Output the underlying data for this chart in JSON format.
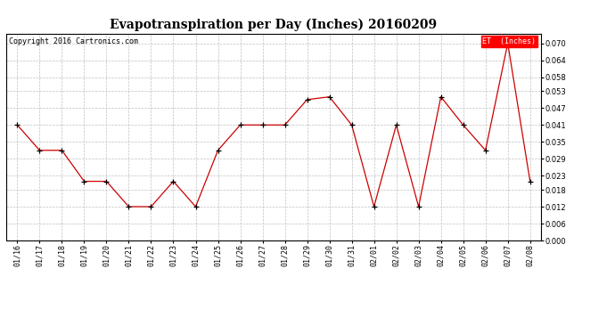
{
  "title": "Evapotranspiration per Day (Inches) 20160209",
  "copyright": "Copyright 2016 Cartronics.com",
  "legend_label": "ET  (Inches)",
  "x_labels": [
    "01/16",
    "01/17",
    "01/18",
    "01/19",
    "01/20",
    "01/21",
    "01/22",
    "01/23",
    "01/24",
    "01/25",
    "01/26",
    "01/27",
    "01/28",
    "01/29",
    "01/30",
    "01/31",
    "02/01",
    "02/02",
    "02/03",
    "02/04",
    "02/05",
    "02/06",
    "02/07",
    "02/08"
  ],
  "y_values": [
    0.041,
    0.032,
    0.032,
    0.021,
    0.021,
    0.012,
    0.012,
    0.021,
    0.012,
    0.032,
    0.041,
    0.041,
    0.041,
    0.05,
    0.051,
    0.041,
    0.012,
    0.041,
    0.012,
    0.051,
    0.041,
    0.032,
    0.07,
    0.021
  ],
  "line_color": "#cc0000",
  "marker_color": "#000000",
  "bg_color": "#ffffff",
  "grid_color": "#c0c0c0",
  "title_fontsize": 10,
  "copyright_fontsize": 6,
  "tick_fontsize": 6,
  "legend_bg": "#ff0000",
  "legend_text_color": "#ffffff",
  "legend_fontsize": 6,
  "ylim": [
    0.0,
    0.0735
  ],
  "yticks": [
    0.0,
    0.006,
    0.012,
    0.018,
    0.023,
    0.029,
    0.035,
    0.041,
    0.047,
    0.053,
    0.058,
    0.064,
    0.07
  ]
}
